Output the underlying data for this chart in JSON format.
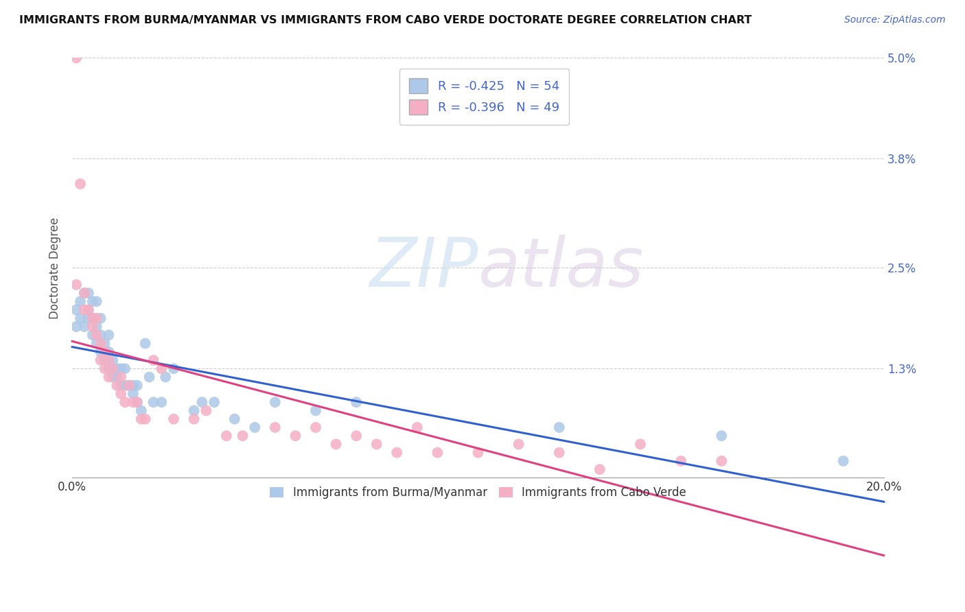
{
  "title": "IMMIGRANTS FROM BURMA/MYANMAR VS IMMIGRANTS FROM CABO VERDE DOCTORATE DEGREE CORRELATION CHART",
  "source": "Source: ZipAtlas.com",
  "ylabel": "Doctorate Degree",
  "xlim": [
    0.0,
    0.2
  ],
  "ylim": [
    -0.005,
    0.055
  ],
  "plot_ylim": [
    0.0,
    0.05
  ],
  "xticks": [
    0.0,
    0.2
  ],
  "xtick_labels": [
    "0.0%",
    "20.0%"
  ],
  "ytick_labels": [
    "",
    "1.3%",
    "2.5%",
    "3.8%",
    "5.0%"
  ],
  "yticks": [
    0.0,
    0.013,
    0.025,
    0.038,
    0.05
  ],
  "blue_R": -0.425,
  "blue_N": 54,
  "pink_R": -0.396,
  "pink_N": 49,
  "blue_color": "#adc8e8",
  "pink_color": "#f4afc4",
  "blue_line_color": "#3060d0",
  "pink_line_color": "#e04080",
  "tick_color": "#4466cc",
  "legend_label_blue": "Immigrants from Burma/Myanmar",
  "legend_label_pink": "Immigrants from Cabo Verde",
  "blue_scatter_x": [
    0.001,
    0.001,
    0.002,
    0.002,
    0.003,
    0.003,
    0.004,
    0.004,
    0.004,
    0.005,
    0.005,
    0.005,
    0.006,
    0.006,
    0.006,
    0.007,
    0.007,
    0.007,
    0.008,
    0.008,
    0.009,
    0.009,
    0.009,
    0.01,
    0.01,
    0.011,
    0.011,
    0.012,
    0.012,
    0.013,
    0.013,
    0.014,
    0.015,
    0.015,
    0.016,
    0.016,
    0.017,
    0.018,
    0.019,
    0.02,
    0.022,
    0.023,
    0.025,
    0.03,
    0.032,
    0.035,
    0.04,
    0.045,
    0.05,
    0.06,
    0.07,
    0.12,
    0.16,
    0.19
  ],
  "blue_scatter_y": [
    0.018,
    0.02,
    0.019,
    0.021,
    0.018,
    0.022,
    0.02,
    0.022,
    0.019,
    0.019,
    0.021,
    0.017,
    0.016,
    0.018,
    0.021,
    0.015,
    0.017,
    0.019,
    0.014,
    0.016,
    0.013,
    0.015,
    0.017,
    0.012,
    0.014,
    0.012,
    0.013,
    0.011,
    0.013,
    0.011,
    0.013,
    0.011,
    0.01,
    0.011,
    0.009,
    0.011,
    0.008,
    0.016,
    0.012,
    0.009,
    0.009,
    0.012,
    0.013,
    0.008,
    0.009,
    0.009,
    0.007,
    0.006,
    0.009,
    0.008,
    0.009,
    0.006,
    0.005,
    0.002
  ],
  "pink_scatter_x": [
    0.001,
    0.001,
    0.002,
    0.003,
    0.003,
    0.004,
    0.005,
    0.005,
    0.006,
    0.006,
    0.007,
    0.007,
    0.008,
    0.008,
    0.009,
    0.009,
    0.01,
    0.011,
    0.012,
    0.012,
    0.013,
    0.014,
    0.015,
    0.016,
    0.017,
    0.018,
    0.02,
    0.022,
    0.025,
    0.03,
    0.033,
    0.038,
    0.042,
    0.05,
    0.055,
    0.06,
    0.065,
    0.07,
    0.075,
    0.08,
    0.085,
    0.09,
    0.1,
    0.11,
    0.12,
    0.13,
    0.14,
    0.15,
    0.16
  ],
  "pink_scatter_y": [
    0.05,
    0.023,
    0.035,
    0.022,
    0.02,
    0.02,
    0.019,
    0.018,
    0.017,
    0.019,
    0.016,
    0.014,
    0.013,
    0.015,
    0.012,
    0.014,
    0.013,
    0.011,
    0.012,
    0.01,
    0.009,
    0.011,
    0.009,
    0.009,
    0.007,
    0.007,
    0.014,
    0.013,
    0.007,
    0.007,
    0.008,
    0.005,
    0.005,
    0.006,
    0.005,
    0.006,
    0.004,
    0.005,
    0.004,
    0.003,
    0.006,
    0.003,
    0.003,
    0.004,
    0.003,
    0.001,
    0.004,
    0.002,
    0.002
  ]
}
